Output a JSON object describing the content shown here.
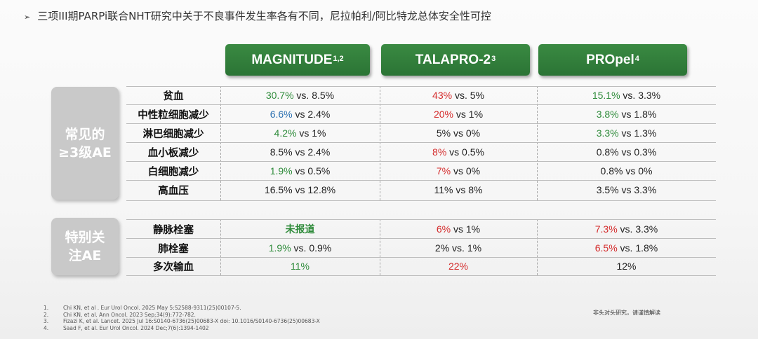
{
  "headline": {
    "bullet": "➢",
    "text": "三项III期PARPi联合NHT研究中关于不良事件发生率各有不同，尼拉帕利/阿比特龙总体安全性可控"
  },
  "columns": [
    {
      "name": "MAGNITUDE",
      "sup": "1,2"
    },
    {
      "name": "TALAPRO-2",
      "sup": "3"
    },
    {
      "name": "PROpel",
      "sup": "4"
    }
  ],
  "sections": [
    {
      "badge": [
        "常见的",
        "≥3级AE"
      ]
    },
    {
      "badge": [
        "特别关",
        "注AE"
      ]
    }
  ],
  "rows": [
    {
      "label": "贫血",
      "cells": [
        {
          "hl": "30.7%",
          "rest": " vs. 8.5%",
          "color": "g"
        },
        {
          "hl": "43%",
          "rest": " vs. 5%",
          "color": "r"
        },
        {
          "hl": "15.1%",
          "rest": " vs. 3.3%",
          "color": "g"
        }
      ]
    },
    {
      "label": "中性粒细胞减少",
      "cells": [
        {
          "hl": "6.6%",
          "rest": " vs 2.4%",
          "color": "b"
        },
        {
          "hl": "20%",
          "rest": " vs 1%",
          "color": "r"
        },
        {
          "hl": "3.8%",
          "rest": " vs 1.8%",
          "color": "g"
        }
      ]
    },
    {
      "label": "淋巴细胞减少",
      "cells": [
        {
          "hl": "4.2%",
          "rest": " vs 1%",
          "color": "g"
        },
        {
          "hl": "",
          "rest": "5% vs 0%",
          "color": ""
        },
        {
          "hl": "3.3%",
          "rest": " vs 1.3%",
          "color": "g"
        }
      ]
    },
    {
      "label": "血小板减少",
      "cells": [
        {
          "hl": "",
          "rest": "8.5% vs 2.4%",
          "color": ""
        },
        {
          "hl": "8%",
          "rest": " vs 0.5%",
          "color": "r"
        },
        {
          "hl": "",
          "rest": "0.8% vs 0.3%",
          "color": ""
        }
      ]
    },
    {
      "label": "白细胞减少",
      "cells": [
        {
          "hl": "1.9%",
          "rest": " vs 0.5%",
          "color": "g"
        },
        {
          "hl": "7%",
          "rest": " vs 0%",
          "color": "r"
        },
        {
          "hl": "",
          "rest": "0.8% vs 0%",
          "color": ""
        }
      ]
    },
    {
      "label": "高血压",
      "cells": [
        {
          "hl": "",
          "rest": "16.5% vs 12.8%",
          "color": ""
        },
        {
          "hl": "",
          "rest": "11% vs 8%",
          "color": ""
        },
        {
          "hl": "",
          "rest": "3.5% vs 3.3%",
          "color": ""
        }
      ]
    },
    {
      "label": "静脉栓塞",
      "cells": [
        {
          "hl": "未报道",
          "rest": "",
          "color": "gb"
        },
        {
          "hl": "6%",
          "rest": " vs 1%",
          "color": "r"
        },
        {
          "hl": "7.3%",
          "rest": " vs. 3.3%",
          "color": "r"
        }
      ]
    },
    {
      "label": "肺栓塞",
      "cells": [
        {
          "hl": "1.9%",
          "rest": " vs. 0.9%",
          "color": "g"
        },
        {
          "hl": "",
          "rest": "2% vs. 1%",
          "color": ""
        },
        {
          "hl": "6.5%",
          "rest": " vs. 1.8%",
          "color": "r"
        }
      ]
    },
    {
      "label": "多次输血",
      "cells": [
        {
          "hl": "11%",
          "rest": "",
          "color": "g"
        },
        {
          "hl": "22%",
          "rest": "",
          "color": "r"
        },
        {
          "hl": "",
          "rest": "12%",
          "color": ""
        }
      ]
    }
  ],
  "footnotes": [
    {
      "num": "1.",
      "text": "Chi KN, et al . Eur Urol Oncol. 2025 May 5:S2588-9311(25)00107-5."
    },
    {
      "num": "2.",
      "text": "Chi KN, et al. Ann Oncol. 2023 Sep;34(9):772-782."
    },
    {
      "num": "3.",
      "text": "Fizazi K, et al. Lancet. 2025 Jul 16:S0140-6736(25)00683-X  doi: 10.1016/S0140-6736(25)00683-X"
    },
    {
      "num": "4.",
      "text": "Saad F, et al. Eur Urol Oncol. 2024 Dec;7(6):1394-1402"
    }
  ],
  "disclaimer": "非头对头研究，请谨慎解读",
  "colors": {
    "green": "#2e8b3a",
    "red": "#d42b2b",
    "blue": "#2a6fb0",
    "header": "#2f7a38",
    "badge": "#c9c9c9"
  }
}
